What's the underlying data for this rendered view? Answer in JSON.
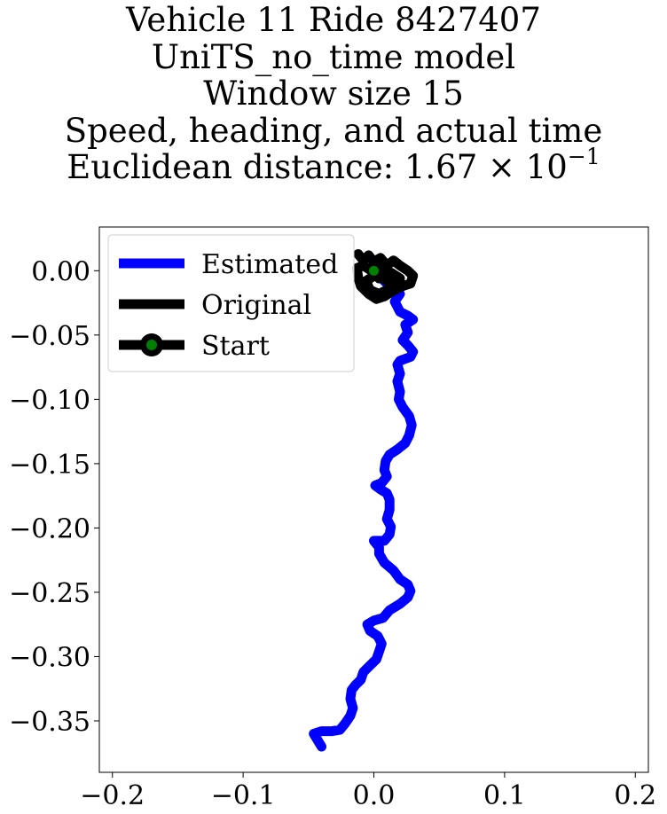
{
  "chart_data": {
    "type": "line",
    "title_lines": [
      "Vehicle 11 Ride 8427407",
      "UniTS_no_time model",
      "Window size 15",
      "Speed, heading, and actual time"
    ],
    "distance_prefix": "Euclidean distance: 1.67 × 10",
    "distance_exponent": "−1",
    "xlim": [
      -0.21,
      0.21
    ],
    "ylim": [
      -0.39,
      0.034
    ],
    "xticks": [
      {
        "value": -0.2,
        "label": "−0.2"
      },
      {
        "value": -0.1,
        "label": "−0.1"
      },
      {
        "value": 0.0,
        "label": "0.0"
      },
      {
        "value": 0.1,
        "label": "0.1"
      },
      {
        "value": 0.2,
        "label": "0.2"
      }
    ],
    "yticks": [
      {
        "value": 0.0,
        "label": "0.00"
      },
      {
        "value": -0.05,
        "label": "−0.05"
      },
      {
        "value": -0.1,
        "label": "−0.10"
      },
      {
        "value": -0.15,
        "label": "−0.15"
      },
      {
        "value": -0.2,
        "label": "−0.20"
      },
      {
        "value": -0.25,
        "label": "−0.25"
      },
      {
        "value": -0.3,
        "label": "−0.30"
      },
      {
        "value": -0.35,
        "label": "−0.35"
      }
    ],
    "legend_position": "upper-left",
    "series": [
      {
        "name": "Estimated",
        "color": "#0000ff",
        "points": [
          [
            0.0,
            0.0
          ],
          [
            0.012,
            -0.012
          ],
          [
            0.02,
            -0.018
          ],
          [
            0.016,
            -0.024
          ],
          [
            0.02,
            -0.032
          ],
          [
            0.026,
            -0.035
          ],
          [
            0.03,
            -0.038
          ],
          [
            0.024,
            -0.042
          ],
          [
            0.026,
            -0.048
          ],
          [
            0.022,
            -0.054
          ],
          [
            0.026,
            -0.058
          ],
          [
            0.03,
            -0.063
          ],
          [
            0.028,
            -0.067
          ],
          [
            0.02,
            -0.07
          ],
          [
            0.018,
            -0.073
          ],
          [
            0.02,
            -0.08
          ],
          [
            0.018,
            -0.086
          ],
          [
            0.02,
            -0.094
          ],
          [
            0.019,
            -0.1
          ],
          [
            0.022,
            -0.106
          ],
          [
            0.027,
            -0.113
          ],
          [
            0.029,
            -0.12
          ],
          [
            0.027,
            -0.128
          ],
          [
            0.024,
            -0.134
          ],
          [
            0.018,
            -0.139
          ],
          [
            0.012,
            -0.143
          ],
          [
            0.009,
            -0.148
          ],
          [
            0.008,
            -0.155
          ],
          [
            0.01,
            -0.16
          ],
          [
            0.006,
            -0.165
          ],
          [
            0.001,
            -0.167
          ],
          [
            0.005,
            -0.17
          ],
          [
            0.01,
            -0.173
          ],
          [
            0.012,
            -0.178
          ],
          [
            0.012,
            -0.186
          ],
          [
            0.01,
            -0.193
          ],
          [
            0.013,
            -0.199
          ],
          [
            0.012,
            -0.205
          ],
          [
            0.008,
            -0.21
          ],
          [
            0.0,
            -0.21
          ],
          [
            0.004,
            -0.215
          ],
          [
            0.004,
            -0.22
          ],
          [
            0.008,
            -0.227
          ],
          [
            0.015,
            -0.233
          ],
          [
            0.02,
            -0.24
          ],
          [
            0.026,
            -0.244
          ],
          [
            0.028,
            -0.249
          ],
          [
            0.026,
            -0.254
          ],
          [
            0.02,
            -0.259
          ],
          [
            0.012,
            -0.264
          ],
          [
            0.007,
            -0.27
          ],
          [
            0.0,
            -0.272
          ],
          [
            -0.005,
            -0.275
          ],
          [
            -0.003,
            -0.28
          ],
          [
            0.003,
            -0.284
          ],
          [
            0.006,
            -0.29
          ],
          [
            0.004,
            -0.296
          ],
          [
            0.002,
            -0.302
          ],
          [
            -0.003,
            -0.307
          ],
          [
            -0.008,
            -0.312
          ],
          [
            -0.01,
            -0.318
          ],
          [
            -0.014,
            -0.322
          ],
          [
            -0.017,
            -0.326
          ],
          [
            -0.018,
            -0.333
          ],
          [
            -0.016,
            -0.34
          ],
          [
            -0.018,
            -0.346
          ],
          [
            -0.022,
            -0.352
          ],
          [
            -0.026,
            -0.357
          ],
          [
            -0.032,
            -0.358
          ],
          [
            -0.04,
            -0.358
          ],
          [
            -0.046,
            -0.36
          ],
          [
            -0.043,
            -0.365
          ],
          [
            -0.04,
            -0.37
          ]
        ]
      },
      {
        "name": "Original",
        "color": "#000000",
        "points": [
          [
            -0.012,
            0.013
          ],
          [
            -0.008,
            0.008
          ],
          [
            -0.004,
            0.012
          ],
          [
            0.0,
            0.007
          ],
          [
            0.005,
            0.01
          ],
          [
            0.01,
            0.004
          ],
          [
            0.015,
            0.008
          ],
          [
            0.02,
            0.004
          ],
          [
            0.026,
            0.0
          ],
          [
            0.03,
            -0.004
          ],
          [
            0.028,
            -0.01
          ],
          [
            0.022,
            -0.012
          ],
          [
            0.014,
            -0.016
          ],
          [
            0.008,
            -0.02
          ],
          [
            0.002,
            -0.022
          ],
          [
            -0.004,
            -0.018
          ],
          [
            -0.01,
            -0.012
          ],
          [
            -0.012,
            -0.005
          ],
          [
            -0.013,
            0.002
          ],
          [
            -0.008,
            0.004
          ],
          [
            -0.002,
            0.0
          ],
          [
            0.004,
            -0.004
          ],
          [
            0.01,
            -0.008
          ],
          [
            0.016,
            -0.01
          ],
          [
            0.02,
            -0.006
          ],
          [
            0.014,
            -0.002
          ],
          [
            0.006,
            0.002
          ],
          [
            0.0,
            -0.004
          ],
          [
            -0.006,
            -0.008
          ],
          [
            -0.003,
            -0.015
          ],
          [
            0.004,
            -0.018
          ],
          [
            0.012,
            -0.014
          ],
          [
            0.018,
            -0.008
          ],
          [
            0.012,
            -0.004
          ],
          [
            0.004,
            -0.006
          ],
          [
            0.0,
            0.0
          ]
        ]
      }
    ],
    "start": {
      "name": "Start",
      "x": 0.0,
      "y": 0.0,
      "marker_face": "#008000",
      "marker_edge": "#000000"
    }
  }
}
